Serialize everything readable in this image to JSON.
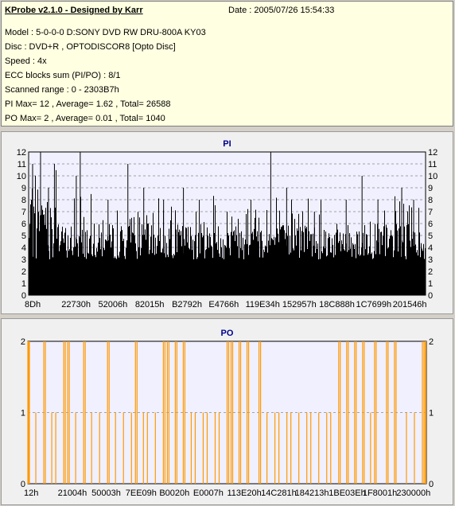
{
  "header": {
    "title": "KProbe v2.1.0 - Designed by Karr",
    "date": "Date : 2005/07/26 15:54:33"
  },
  "info": {
    "model": "Model : 5-0-0-0 D:SONY     DVD RW DRU-800A  KY03",
    "disc": "Disc : DVD+R , OPTODISCOR8 [Opto Disc]",
    "speed": "Speed : 4x",
    "ecc": "ECC blocks sum (PI/PO) : 8/1",
    "range": "Scanned range : 0 - 2303B7h",
    "pi_stats": "PI Max= 12 , Average= 1.62 , Total= 26588",
    "po_stats": "PO Max= 2 , Average= 0.01 , Total= 1040"
  },
  "colors": {
    "pi_bars": "#000000",
    "po_lines": "#ff9900",
    "plot_bg": "#f0f0ff",
    "grid": "#888888",
    "title": "#00008b"
  },
  "chart_data": [
    {
      "type": "bar",
      "title": "PI",
      "ylim": [
        0,
        12
      ],
      "yticks": [
        0,
        1,
        2,
        3,
        4,
        5,
        6,
        7,
        8,
        9,
        10,
        11,
        12
      ],
      "xtick_labels": [
        "8Dh",
        "22730h",
        "52006h",
        "82015h",
        "B2792h",
        "E4766h",
        "119E34h",
        "152957h",
        "18C888h",
        "1C7699h",
        "201546h"
      ],
      "grid": "dashed horizontal",
      "peaks": [
        {
          "x": 0.01,
          "y": 11
        },
        {
          "x": 0.03,
          "y": 12
        },
        {
          "x": 0.05,
          "y": 9
        },
        {
          "x": 0.065,
          "y": 11
        },
        {
          "x": 0.12,
          "y": 10
        },
        {
          "x": 0.13,
          "y": 12
        },
        {
          "x": 0.2,
          "y": 8
        },
        {
          "x": 0.25,
          "y": 11
        },
        {
          "x": 0.29,
          "y": 9
        },
        {
          "x": 0.34,
          "y": 8
        },
        {
          "x": 0.39,
          "y": 9
        },
        {
          "x": 0.43,
          "y": 8
        },
        {
          "x": 0.5,
          "y": 7
        },
        {
          "x": 0.56,
          "y": 8
        },
        {
          "x": 0.61,
          "y": 12
        },
        {
          "x": 0.65,
          "y": 9
        },
        {
          "x": 0.72,
          "y": 7
        },
        {
          "x": 0.8,
          "y": 8
        },
        {
          "x": 0.84,
          "y": 10
        },
        {
          "x": 0.88,
          "y": 8
        },
        {
          "x": 0.94,
          "y": 9
        },
        {
          "x": 0.97,
          "y": 8
        }
      ],
      "baseline_range": [
        3,
        6
      ]
    },
    {
      "type": "bar",
      "title": "PO",
      "ylim": [
        0,
        2
      ],
      "yticks": [
        0,
        1,
        2
      ],
      "xtick_labels": [
        "12h",
        "21004h",
        "50003h",
        "7EE09h",
        "B0020h",
        "E0007h",
        "113E20h",
        "14C281h",
        "184213h",
        "1BE03Eh",
        "1F8001h",
        "230000h"
      ],
      "grid": "dashed horizontal",
      "value2_positions": [
        0.0,
        0.04,
        0.09,
        0.1,
        0.14,
        0.2,
        0.27,
        0.34,
        0.35,
        0.37,
        0.39,
        0.5,
        0.51,
        0.53,
        0.55,
        0.58,
        0.78,
        0.8,
        0.82,
        0.84,
        0.87,
        0.9,
        0.92,
        0.99
      ],
      "value1_positions": [
        0.02,
        0.06,
        0.07,
        0.12,
        0.16,
        0.18,
        0.22,
        0.24,
        0.26,
        0.29,
        0.3,
        0.32,
        0.41,
        0.42,
        0.44,
        0.45,
        0.47,
        0.48,
        0.6,
        0.62,
        0.63,
        0.65,
        0.66,
        0.68,
        0.7,
        0.71,
        0.73,
        0.75,
        0.76,
        0.86,
        0.95,
        0.97
      ]
    }
  ]
}
